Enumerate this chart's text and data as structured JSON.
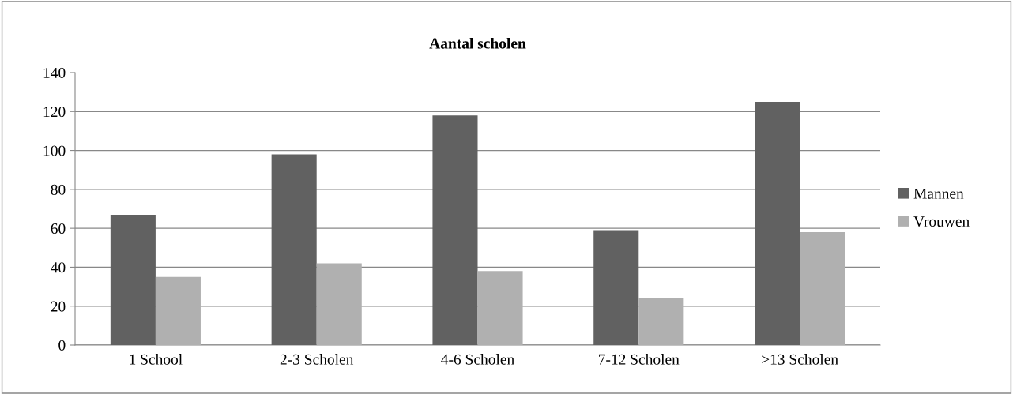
{
  "chart_data": {
    "type": "bar",
    "title": "Aantal scholen",
    "categories": [
      "1 School",
      "2-3 Scholen",
      "4-6 Scholen",
      "7-12 Scholen",
      ">13 Scholen"
    ],
    "series": [
      {
        "name": "Mannen",
        "color": "#616161",
        "values": [
          67,
          98,
          118,
          59,
          125
        ]
      },
      {
        "name": "Vrouwen",
        "color": "#b0b0b0",
        "values": [
          35,
          42,
          38,
          24,
          58
        ]
      }
    ],
    "ylim": [
      0,
      140
    ],
    "yticks": [
      0,
      20,
      40,
      60,
      80,
      100,
      120,
      140
    ],
    "grid": "y",
    "legend": "right"
  }
}
